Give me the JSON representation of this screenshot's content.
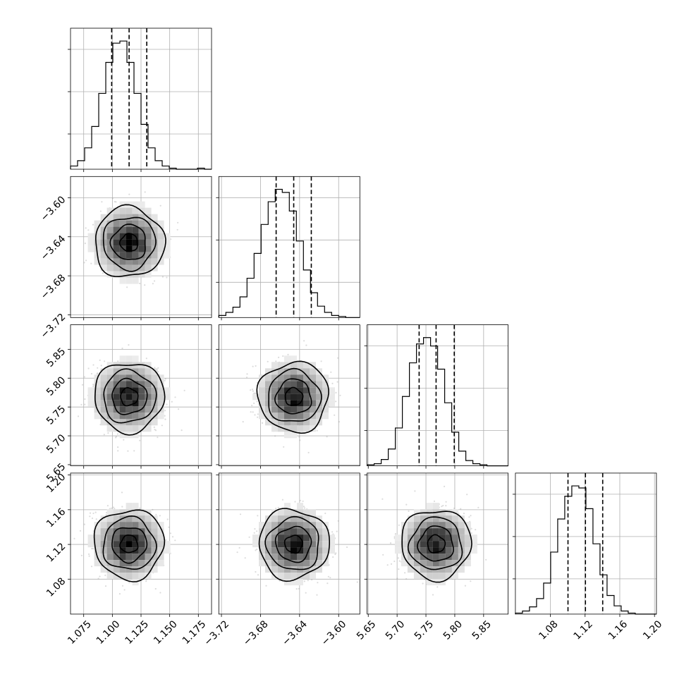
{
  "chart_data": {
    "type": "corner",
    "grid": true,
    "parameters": [
      {
        "index": 0,
        "range": [
          1.0635,
          1.1865
        ],
        "ticks": [
          1.075,
          1.1,
          1.125,
          1.15,
          1.175
        ],
        "tick_labels": [
          "1.075",
          "1.100",
          "1.125",
          "1.150",
          "1.175"
        ],
        "quantiles": [
          1.0994,
          1.1146,
          1.13
        ],
        "mean": 1.1146,
        "sd": 0.0152,
        "hist_counts": [
          3,
          8,
          20,
          40,
          71,
          100,
          118,
          120,
          100,
          71,
          42,
          20,
          8,
          3,
          1,
          0,
          0,
          0,
          1,
          0
        ]
      },
      {
        "index": 1,
        "range": [
          -3.7227,
          -3.5783
        ],
        "ticks": [
          -3.72,
          -3.68,
          -3.64,
          -3.6
        ],
        "tick_labels": [
          "−3.72",
          "−3.68",
          "−3.64",
          "−3.60"
        ],
        "quantiles": [
          -3.664,
          -3.646,
          -3.628
        ],
        "mean": -3.646,
        "sd": 0.018,
        "hist_counts": [
          2,
          5,
          10,
          20,
          38,
          62,
          90,
          112,
          124,
          121,
          103,
          74,
          46,
          24,
          11,
          5,
          2,
          1,
          0,
          0
        ]
      },
      {
        "index": 2,
        "range": [
          5.648,
          5.8925
        ],
        "ticks": [
          5.65,
          5.7,
          5.75,
          5.8,
          5.85
        ],
        "tick_labels": [
          "5.65",
          "5.70",
          "5.75",
          "5.80",
          "5.85"
        ],
        "quantiles": [
          5.7382,
          5.7676,
          5.7991
        ],
        "mean": 5.7676,
        "sd": 0.0302,
        "hist_counts": [
          1,
          2,
          6,
          16,
          36,
          66,
          98,
          116,
          122,
          114,
          92,
          60,
          32,
          14,
          5,
          2,
          1,
          0,
          0,
          0
        ]
      },
      {
        "index": 3,
        "range": [
          1.0397,
          1.2022
        ],
        "ticks": [
          1.08,
          1.12,
          1.16,
          1.2
        ],
        "tick_labels": [
          "1.08",
          "1.12",
          "1.16",
          "1.20"
        ],
        "quantiles": [
          1.1003,
          1.1204,
          1.1403
        ],
        "mean": 1.1204,
        "sd": 0.0201,
        "hist_counts": [
          1,
          3,
          7,
          15,
          30,
          60,
          92,
          114,
          124,
          122,
          102,
          68,
          38,
          18,
          8,
          3,
          1,
          0,
          0,
          0
        ]
      }
    ]
  }
}
